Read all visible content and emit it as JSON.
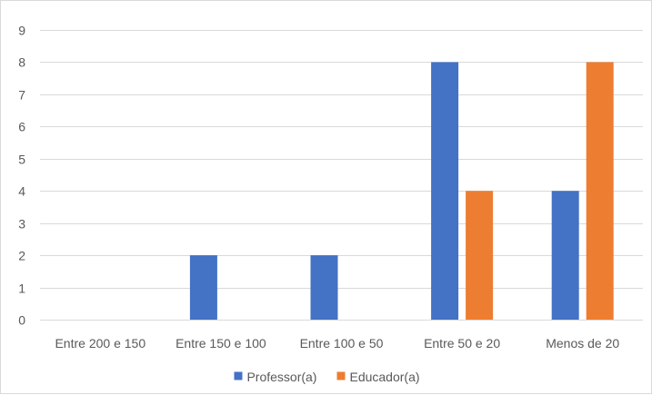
{
  "chart_data": {
    "type": "bar",
    "categories": [
      "Entre 200 e 150",
      "Entre 150 e 100",
      "Entre 100 e 50",
      "Entre 50 e 20",
      "Menos de 20"
    ],
    "series": [
      {
        "name": "Professor(a)",
        "values": [
          0,
          2,
          2,
          8,
          4
        ],
        "color": "#4472c4"
      },
      {
        "name": "Educador(a)",
        "values": [
          0,
          0,
          0,
          4,
          8
        ],
        "color": "#ed7d31"
      }
    ],
    "title": "",
    "xlabel": "",
    "ylabel": "",
    "ylim": [
      0,
      9
    ],
    "yticks": [
      0,
      1,
      2,
      3,
      4,
      5,
      6,
      7,
      8,
      9
    ],
    "grid": true,
    "gridline_color": "#d9d9d9",
    "legend_position": "bottom"
  }
}
